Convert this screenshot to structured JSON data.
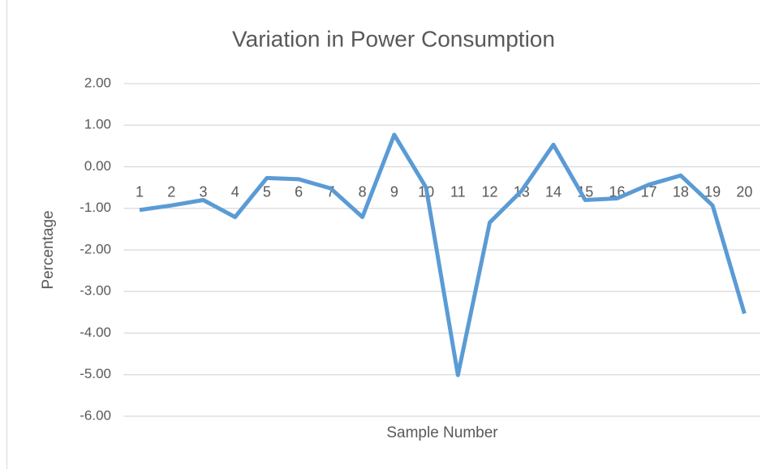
{
  "chart_data": {
    "type": "line",
    "title": "Variation in Power Consumption",
    "x_label": "Sample Number",
    "y_label": "Percentage",
    "categories": [
      "1",
      "2",
      "3",
      "4",
      "5",
      "6",
      "7",
      "8",
      "9",
      "10",
      "11",
      "12",
      "13",
      "14",
      "15",
      "16",
      "17",
      "18",
      "19",
      "20"
    ],
    "series": [
      {
        "name": "Percentage",
        "color": "#5b9bd5",
        "values": [
          -1.04,
          -0.93,
          -0.8,
          -1.21,
          -0.27,
          -0.3,
          -0.52,
          -1.21,
          0.77,
          -0.5,
          -5.01,
          -1.34,
          -0.58,
          0.53,
          -0.8,
          -0.76,
          -0.43,
          -0.21,
          -0.93,
          -3.53
        ]
      }
    ],
    "ylim": [
      -6,
      2
    ],
    "yticks": [
      {
        "value": 2,
        "label": "2.00"
      },
      {
        "value": 1,
        "label": "1.00"
      },
      {
        "value": 0,
        "label": "0.00"
      },
      {
        "value": -1,
        "label": "-1.00"
      },
      {
        "value": -2,
        "label": "-2.00"
      },
      {
        "value": -3,
        "label": "-3.00"
      },
      {
        "value": -4,
        "label": "-4.00"
      },
      {
        "value": -5,
        "label": "-5.00"
      },
      {
        "value": -6,
        "label": "-6.00"
      }
    ],
    "grid": true
  }
}
